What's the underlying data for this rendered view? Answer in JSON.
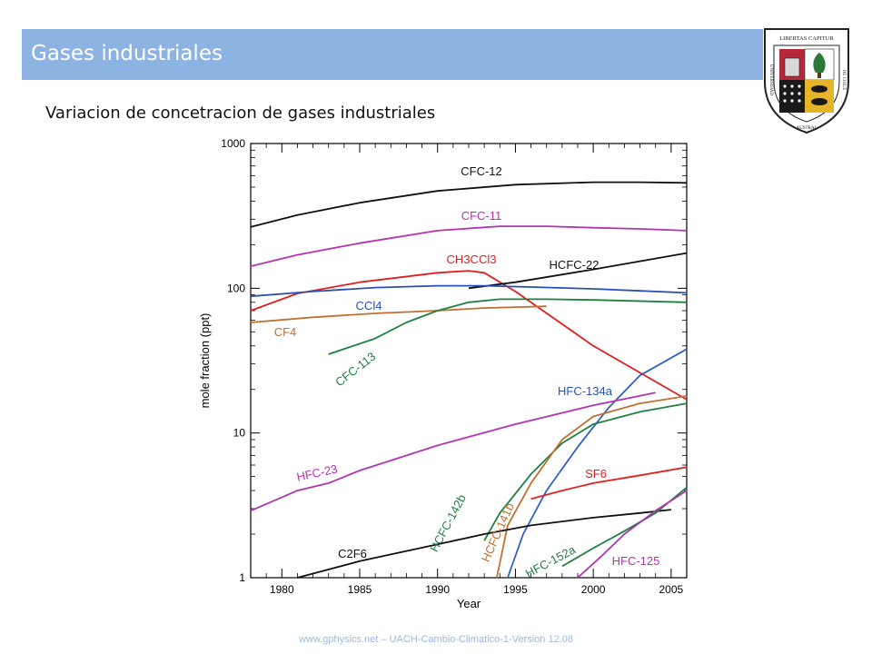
{
  "slide": {
    "title": "Gases industriales",
    "subtitle": "Variacion de concetracion de gases industriales",
    "footer": "www.gphysics.net – UACH-Cambio-Climatico-1-Version 12.08",
    "title_bar_color": "#8db3e2"
  },
  "logo": {
    "top_text": "LIBERTAS CAPITUR",
    "left_text": "UNIVERSIDAD",
    "bottom_text": "AUSTRAL",
    "right_text": "DE CHILE"
  },
  "chart_data": {
    "type": "line",
    "xlabel": "Year",
    "ylabel": "mole fraction (ppt)",
    "xlim": [
      1978,
      2006
    ],
    "ylim": [
      1,
      1000
    ],
    "yscale": "log",
    "xticks": [
      1980,
      1985,
      1990,
      1995,
      2000,
      2005
    ],
    "yticks": [
      1,
      10,
      100,
      1000
    ],
    "series": [
      {
        "name": "CFC-12",
        "color": "#111111",
        "x": [
          1978,
          1981,
          1985,
          1990,
          1995,
          2000,
          2003,
          2006
        ],
        "y": [
          265,
          320,
          390,
          470,
          520,
          540,
          540,
          535
        ]
      },
      {
        "name": "CFC-11",
        "color": "#b234b0",
        "x": [
          1978,
          1981,
          1985,
          1990,
          1994,
          1997,
          2000,
          2003,
          2006
        ],
        "y": [
          142,
          170,
          205,
          250,
          268,
          268,
          262,
          257,
          250
        ]
      },
      {
        "name": "CH3CCl3",
        "color": "#e02020",
        "x": [
          1978,
          1981,
          1985,
          1990,
          1992,
          1993,
          1995,
          2000,
          2006
        ],
        "y": [
          70,
          92,
          110,
          128,
          132,
          128,
          95,
          40,
          17
        ]
      },
      {
        "name": "HCFC-22",
        "color": "#111111",
        "x": [
          1992,
          1995,
          2000,
          2006
        ],
        "y": [
          100,
          110,
          135,
          175
        ]
      },
      {
        "name": "CCl4",
        "color": "#2a50b8",
        "x": [
          1978,
          1982,
          1986,
          1990,
          1993,
          1996,
          2000,
          2003,
          2006
        ],
        "y": [
          88,
          95,
          101,
          104,
          104,
          102,
          99,
          96,
          93
        ]
      },
      {
        "name": "CF4",
        "color": "#c07030",
        "x": [
          1978,
          1982,
          1986,
          1990,
          1993,
          1997
        ],
        "y": [
          58,
          63,
          67,
          70,
          73,
          75
        ]
      },
      {
        "name": "CFC-113",
        "color": "#208040",
        "x": [
          1983,
          1986,
          1988,
          1990,
          1992,
          1994,
          1997,
          2000,
          2006
        ],
        "y": [
          35,
          45,
          58,
          70,
          80,
          84,
          84,
          83,
          80
        ]
      },
      {
        "name": "HFC-134a",
        "color": "#3060c8",
        "x": [
          1994.5,
          1995.5,
          1997,
          1999,
          2001,
          2003,
          2006
        ],
        "y": [
          1,
          2,
          4,
          8,
          15,
          25,
          38
        ]
      },
      {
        "name": "HFC-23",
        "color": "#b234b0",
        "x": [
          1978,
          1981,
          1983,
          1985,
          1990,
          1995,
          2000,
          2004
        ],
        "y": [
          2.9,
          4.0,
          4.5,
          5.5,
          8.2,
          11.5,
          15.5,
          19
        ]
      },
      {
        "name": "HCFC-142b",
        "color": "#208040",
        "x": [
          1993,
          1994,
          1996,
          1998,
          2000,
          2003,
          2006
        ],
        "y": [
          1.8,
          2.8,
          5.2,
          8.5,
          11.5,
          14,
          16
        ]
      },
      {
        "name": "HCFC-141b",
        "color": "#c07030",
        "x": [
          1993.8,
          1994.5,
          1996,
          1998,
          2000,
          2003,
          2006
        ],
        "y": [
          1,
          2.3,
          4.5,
          9,
          13,
          16,
          18
        ]
      },
      {
        "name": "SF6",
        "color": "#e02020",
        "x": [
          1996,
          1998,
          2000,
          2003,
          2006
        ],
        "y": [
          3.5,
          4.0,
          4.5,
          5.1,
          5.8
        ]
      },
      {
        "name": "C2F6",
        "color": "#111111",
        "x": [
          1981,
          1985,
          1990,
          1993,
          1996,
          2000,
          2003,
          2005
        ],
        "y": [
          1,
          1.3,
          1.7,
          2.0,
          2.3,
          2.6,
          2.8,
          2.95
        ]
      },
      {
        "name": "HFC-152a",
        "color": "#208040",
        "x": [
          1998,
          2000,
          2002,
          2004,
          2006
        ],
        "y": [
          1.2,
          1.6,
          2.1,
          2.8,
          4.2
        ]
      },
      {
        "name": "HFC-125",
        "color": "#b234b0",
        "x": [
          1999,
          2000.5,
          2002,
          2004,
          2006
        ],
        "y": [
          1,
          1.4,
          2.0,
          2.9,
          4.0
        ]
      }
    ],
    "annotations": [
      {
        "text": "CFC-12",
        "color": "#111111"
      },
      {
        "text": "CFC-11",
        "color": "#b234b0"
      },
      {
        "text": "CH3CCl3",
        "color": "#e02020"
      },
      {
        "text": "HCFC-22",
        "color": "#111111"
      },
      {
        "text": "CCl4",
        "color": "#2a50b8"
      },
      {
        "text": "CF4",
        "color": "#c07030"
      },
      {
        "text": "CFC-113",
        "color": "#208040"
      },
      {
        "text": "HFC-134a",
        "color": "#2a50b8"
      },
      {
        "text": "HFC-23",
        "color": "#b234b0"
      },
      {
        "text": "HCFC-142b",
        "color": "#208040"
      },
      {
        "text": "HCFC-141b",
        "color": "#c07030"
      },
      {
        "text": "SF6",
        "color": "#e02020"
      },
      {
        "text": "C2F6",
        "color": "#111111"
      },
      {
        "text": "HFC-152a",
        "color": "#208040"
      },
      {
        "text": "HFC-125",
        "color": "#b234b0"
      }
    ]
  }
}
